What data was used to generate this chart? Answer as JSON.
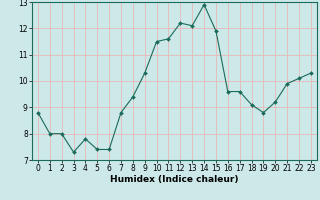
{
  "x": [
    0,
    1,
    2,
    3,
    4,
    5,
    6,
    7,
    8,
    9,
    10,
    11,
    12,
    13,
    14,
    15,
    16,
    17,
    18,
    19,
    20,
    21,
    22,
    23
  ],
  "y": [
    8.8,
    8.0,
    8.0,
    7.3,
    7.8,
    7.4,
    7.4,
    8.8,
    9.4,
    10.3,
    11.5,
    11.6,
    12.2,
    12.1,
    12.9,
    11.9,
    9.6,
    9.6,
    9.1,
    8.8,
    9.2,
    9.9,
    10.1,
    10.3
  ],
  "xlabel": "Humidex (Indice chaleur)",
  "ylim": [
    7,
    13
  ],
  "xlim_min": -0.5,
  "xlim_max": 23.5,
  "yticks": [
    7,
    8,
    9,
    10,
    11,
    12,
    13
  ],
  "xticks": [
    0,
    1,
    2,
    3,
    4,
    5,
    6,
    7,
    8,
    9,
    10,
    11,
    12,
    13,
    14,
    15,
    16,
    17,
    18,
    19,
    20,
    21,
    22,
    23
  ],
  "line_color": "#1a6b5a",
  "marker_color": "#1a6b5a",
  "bg_color": "#cce8e8",
  "grid_color": "#e8b8b8",
  "fig_bg": "#cce8e8",
  "tick_fontsize": 5.5,
  "xlabel_fontsize": 6.5
}
